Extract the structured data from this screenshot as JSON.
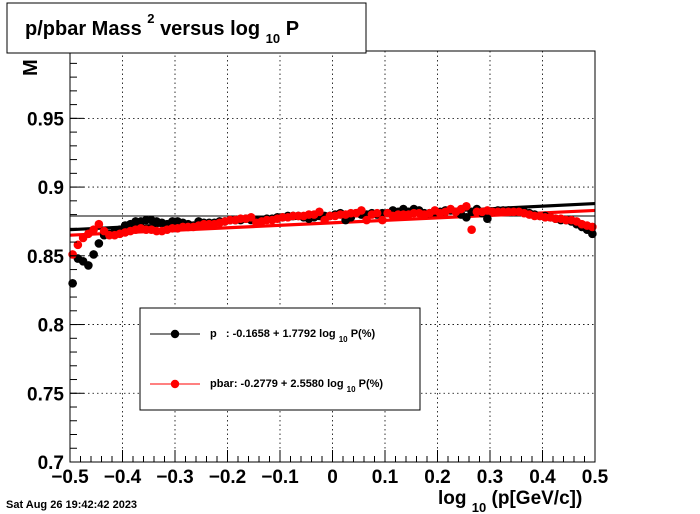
{
  "chart_data": {
    "type": "scatter",
    "title": {
      "main": "p/pbar Mass",
      "sup": "2",
      "rest": " versus log",
      "sub": "10",
      "end": "P"
    },
    "ylabel_clip": "M",
    "xlabel": {
      "pre": "log",
      "sub": "10",
      "post": "(p[GeV/c])"
    },
    "xlim": [
      -0.5,
      0.5
    ],
    "ylim": [
      0.7,
      0.999
    ],
    "xticks": [
      -0.5,
      -0.4,
      -0.3,
      -0.2,
      -0.1,
      0,
      0.1,
      0.2,
      0.3,
      0.4,
      0.5
    ],
    "xtick_labels": [
      "−0.5",
      "−0.4",
      "−0.3",
      "−0.2",
      "−0.1",
      "0",
      "0.1",
      "0.2",
      "0.3",
      "0.4",
      "0.5"
    ],
    "yticks": [
      0.7,
      0.75,
      0.8,
      0.85,
      0.9,
      0.95
    ],
    "ytick_labels": [
      "0.7",
      "0.75",
      "0.8",
      "0.85",
      "0.9",
      "0.95"
    ],
    "grid": true,
    "hline": 0.879,
    "legend": {
      "placement": "center-left",
      "entries": [
        {
          "pre": "p   : -0.1658 + 1.7792 log",
          "sub": "10",
          "post": "P(%)"
        },
        {
          "pre": "pbar: -0.2779 + 2.5580 log",
          "sub": "10",
          "post": "P(%)"
        }
      ]
    },
    "series": [
      {
        "color": "#000000",
        "fit": {
          "x": [
            -0.5,
            0.5
          ],
          "y": [
            0.869,
            0.888
          ]
        },
        "points": [
          [
            -0.495,
            0.83
          ],
          [
            -0.485,
            0.848
          ],
          [
            -0.475,
            0.846
          ],
          [
            -0.465,
            0.843
          ],
          [
            -0.455,
            0.851
          ],
          [
            -0.445,
            0.859
          ],
          [
            -0.435,
            0.865
          ],
          [
            -0.425,
            0.866
          ],
          [
            -0.415,
            0.868
          ],
          [
            -0.405,
            0.869
          ],
          [
            -0.395,
            0.872
          ],
          [
            -0.385,
            0.873
          ],
          [
            -0.375,
            0.875
          ],
          [
            -0.365,
            0.875
          ],
          [
            -0.355,
            0.876
          ],
          [
            -0.345,
            0.876
          ],
          [
            -0.335,
            0.875
          ],
          [
            -0.325,
            0.874
          ],
          [
            -0.315,
            0.873
          ],
          [
            -0.305,
            0.875
          ],
          [
            -0.295,
            0.875
          ],
          [
            -0.285,
            0.874
          ],
          [
            -0.275,
            0.873
          ],
          [
            -0.265,
            0.872
          ],
          [
            -0.255,
            0.875
          ],
          [
            -0.245,
            0.874
          ],
          [
            -0.235,
            0.874
          ],
          [
            -0.225,
            0.874
          ],
          [
            -0.215,
            0.875
          ],
          [
            -0.205,
            0.875
          ],
          [
            -0.195,
            0.876
          ],
          [
            -0.185,
            0.876
          ],
          [
            -0.175,
            0.876
          ],
          [
            -0.165,
            0.877
          ],
          [
            -0.155,
            0.876
          ],
          [
            -0.145,
            0.876
          ],
          [
            -0.135,
            0.876
          ],
          [
            -0.125,
            0.877
          ],
          [
            -0.115,
            0.877
          ],
          [
            -0.105,
            0.878
          ],
          [
            -0.095,
            0.878
          ],
          [
            -0.085,
            0.879
          ],
          [
            -0.075,
            0.879
          ],
          [
            -0.065,
            0.879
          ],
          [
            -0.055,
            0.878
          ],
          [
            -0.045,
            0.877
          ],
          [
            -0.035,
            0.878
          ],
          [
            -0.025,
            0.879
          ],
          [
            -0.015,
            0.879
          ],
          [
            -0.005,
            0.879
          ],
          [
            0.005,
            0.88
          ],
          [
            0.015,
            0.881
          ],
          [
            0.025,
            0.876
          ],
          [
            0.035,
            0.878
          ],
          [
            0.045,
            0.881
          ],
          [
            0.055,
            0.88
          ],
          [
            0.065,
            0.88
          ],
          [
            0.075,
            0.881
          ],
          [
            0.085,
            0.88
          ],
          [
            0.095,
            0.881
          ],
          [
            0.105,
            0.881
          ],
          [
            0.115,
            0.883
          ],
          [
            0.125,
            0.882
          ],
          [
            0.135,
            0.884
          ],
          [
            0.145,
            0.882
          ],
          [
            0.155,
            0.884
          ],
          [
            0.165,
            0.883
          ],
          [
            0.175,
            0.881
          ],
          [
            0.185,
            0.881
          ],
          [
            0.195,
            0.882
          ],
          [
            0.205,
            0.882
          ],
          [
            0.215,
            0.883
          ],
          [
            0.225,
            0.883
          ],
          [
            0.235,
            0.882
          ],
          [
            0.245,
            0.88
          ],
          [
            0.255,
            0.878
          ],
          [
            0.265,
            0.882
          ],
          [
            0.275,
            0.884
          ],
          [
            0.285,
            0.881
          ],
          [
            0.295,
            0.877
          ],
          [
            0.305,
            0.882
          ],
          [
            0.315,
            0.883
          ],
          [
            0.325,
            0.883
          ],
          [
            0.335,
            0.883
          ],
          [
            0.345,
            0.882
          ],
          [
            0.355,
            0.882
          ],
          [
            0.365,
            0.882
          ],
          [
            0.375,
            0.881
          ],
          [
            0.385,
            0.88
          ],
          [
            0.395,
            0.879
          ],
          [
            0.405,
            0.879
          ],
          [
            0.415,
            0.878
          ],
          [
            0.425,
            0.877
          ],
          [
            0.435,
            0.876
          ],
          [
            0.445,
            0.876
          ],
          [
            0.455,
            0.875
          ],
          [
            0.465,
            0.873
          ],
          [
            0.475,
            0.871
          ],
          [
            0.485,
            0.869
          ],
          [
            0.495,
            0.866
          ]
        ]
      },
      {
        "color": "#ff0000",
        "fit": {
          "x": [
            -0.5,
            0.5
          ],
          "y": [
            0.865,
            0.883
          ]
        },
        "points": [
          [
            -0.495,
            0.851
          ],
          [
            -0.485,
            0.858
          ],
          [
            -0.475,
            0.863
          ],
          [
            -0.465,
            0.866
          ],
          [
            -0.455,
            0.869
          ],
          [
            -0.445,
            0.873
          ],
          [
            -0.435,
            0.868
          ],
          [
            -0.425,
            0.865
          ],
          [
            -0.415,
            0.865
          ],
          [
            -0.405,
            0.866
          ],
          [
            -0.395,
            0.867
          ],
          [
            -0.385,
            0.868
          ],
          [
            -0.375,
            0.869
          ],
          [
            -0.365,
            0.87
          ],
          [
            -0.355,
            0.869
          ],
          [
            -0.345,
            0.869
          ],
          [
            -0.335,
            0.868
          ],
          [
            -0.325,
            0.868
          ],
          [
            -0.315,
            0.869
          ],
          [
            -0.305,
            0.87
          ],
          [
            -0.295,
            0.87
          ],
          [
            -0.285,
            0.871
          ],
          [
            -0.275,
            0.871
          ],
          [
            -0.265,
            0.871
          ],
          [
            -0.255,
            0.872
          ],
          [
            -0.245,
            0.873
          ],
          [
            -0.235,
            0.873
          ],
          [
            -0.225,
            0.873
          ],
          [
            -0.215,
            0.874
          ],
          [
            -0.205,
            0.875
          ],
          [
            -0.195,
            0.876
          ],
          [
            -0.185,
            0.876
          ],
          [
            -0.175,
            0.877
          ],
          [
            -0.165,
            0.877
          ],
          [
            -0.155,
            0.878
          ],
          [
            -0.145,
            0.874
          ],
          [
            -0.135,
            0.875
          ],
          [
            -0.125,
            0.876
          ],
          [
            -0.115,
            0.876
          ],
          [
            -0.105,
            0.877
          ],
          [
            -0.095,
            0.878
          ],
          [
            -0.085,
            0.878
          ],
          [
            -0.075,
            0.879
          ],
          [
            -0.065,
            0.879
          ],
          [
            -0.055,
            0.879
          ],
          [
            -0.045,
            0.88
          ],
          [
            -0.035,
            0.88
          ],
          [
            -0.025,
            0.882
          ],
          [
            -0.015,
            0.876
          ],
          [
            -0.005,
            0.879
          ],
          [
            0.005,
            0.879
          ],
          [
            0.015,
            0.88
          ],
          [
            0.025,
            0.88
          ],
          [
            0.035,
            0.881
          ],
          [
            0.045,
            0.881
          ],
          [
            0.055,
            0.883
          ],
          [
            0.065,
            0.876
          ],
          [
            0.075,
            0.88
          ],
          [
            0.085,
            0.881
          ],
          [
            0.095,
            0.876
          ],
          [
            0.105,
            0.881
          ],
          [
            0.115,
            0.879
          ],
          [
            0.125,
            0.88
          ],
          [
            0.135,
            0.88
          ],
          [
            0.145,
            0.88
          ],
          [
            0.155,
            0.881
          ],
          [
            0.165,
            0.881
          ],
          [
            0.175,
            0.88
          ],
          [
            0.185,
            0.881
          ],
          [
            0.195,
            0.883
          ],
          [
            0.205,
            0.881
          ],
          [
            0.215,
            0.882
          ],
          [
            0.225,
            0.884
          ],
          [
            0.235,
            0.882
          ],
          [
            0.245,
            0.884
          ],
          [
            0.255,
            0.886
          ],
          [
            0.265,
            0.869
          ],
          [
            0.275,
            0.882
          ],
          [
            0.285,
            0.882
          ],
          [
            0.295,
            0.883
          ],
          [
            0.305,
            0.882
          ],
          [
            0.315,
            0.882
          ],
          [
            0.325,
            0.882
          ],
          [
            0.335,
            0.882
          ],
          [
            0.345,
            0.882
          ],
          [
            0.355,
            0.882
          ],
          [
            0.365,
            0.881
          ],
          [
            0.375,
            0.88
          ],
          [
            0.385,
            0.879
          ],
          [
            0.395,
            0.879
          ],
          [
            0.405,
            0.878
          ],
          [
            0.415,
            0.878
          ],
          [
            0.425,
            0.877
          ],
          [
            0.435,
            0.877
          ],
          [
            0.445,
            0.876
          ],
          [
            0.455,
            0.876
          ],
          [
            0.465,
            0.875
          ],
          [
            0.475,
            0.873
          ],
          [
            0.485,
            0.872
          ],
          [
            0.495,
            0.871
          ]
        ]
      }
    ]
  },
  "timestamp": "Sat Aug 26 19:42:42 2023"
}
